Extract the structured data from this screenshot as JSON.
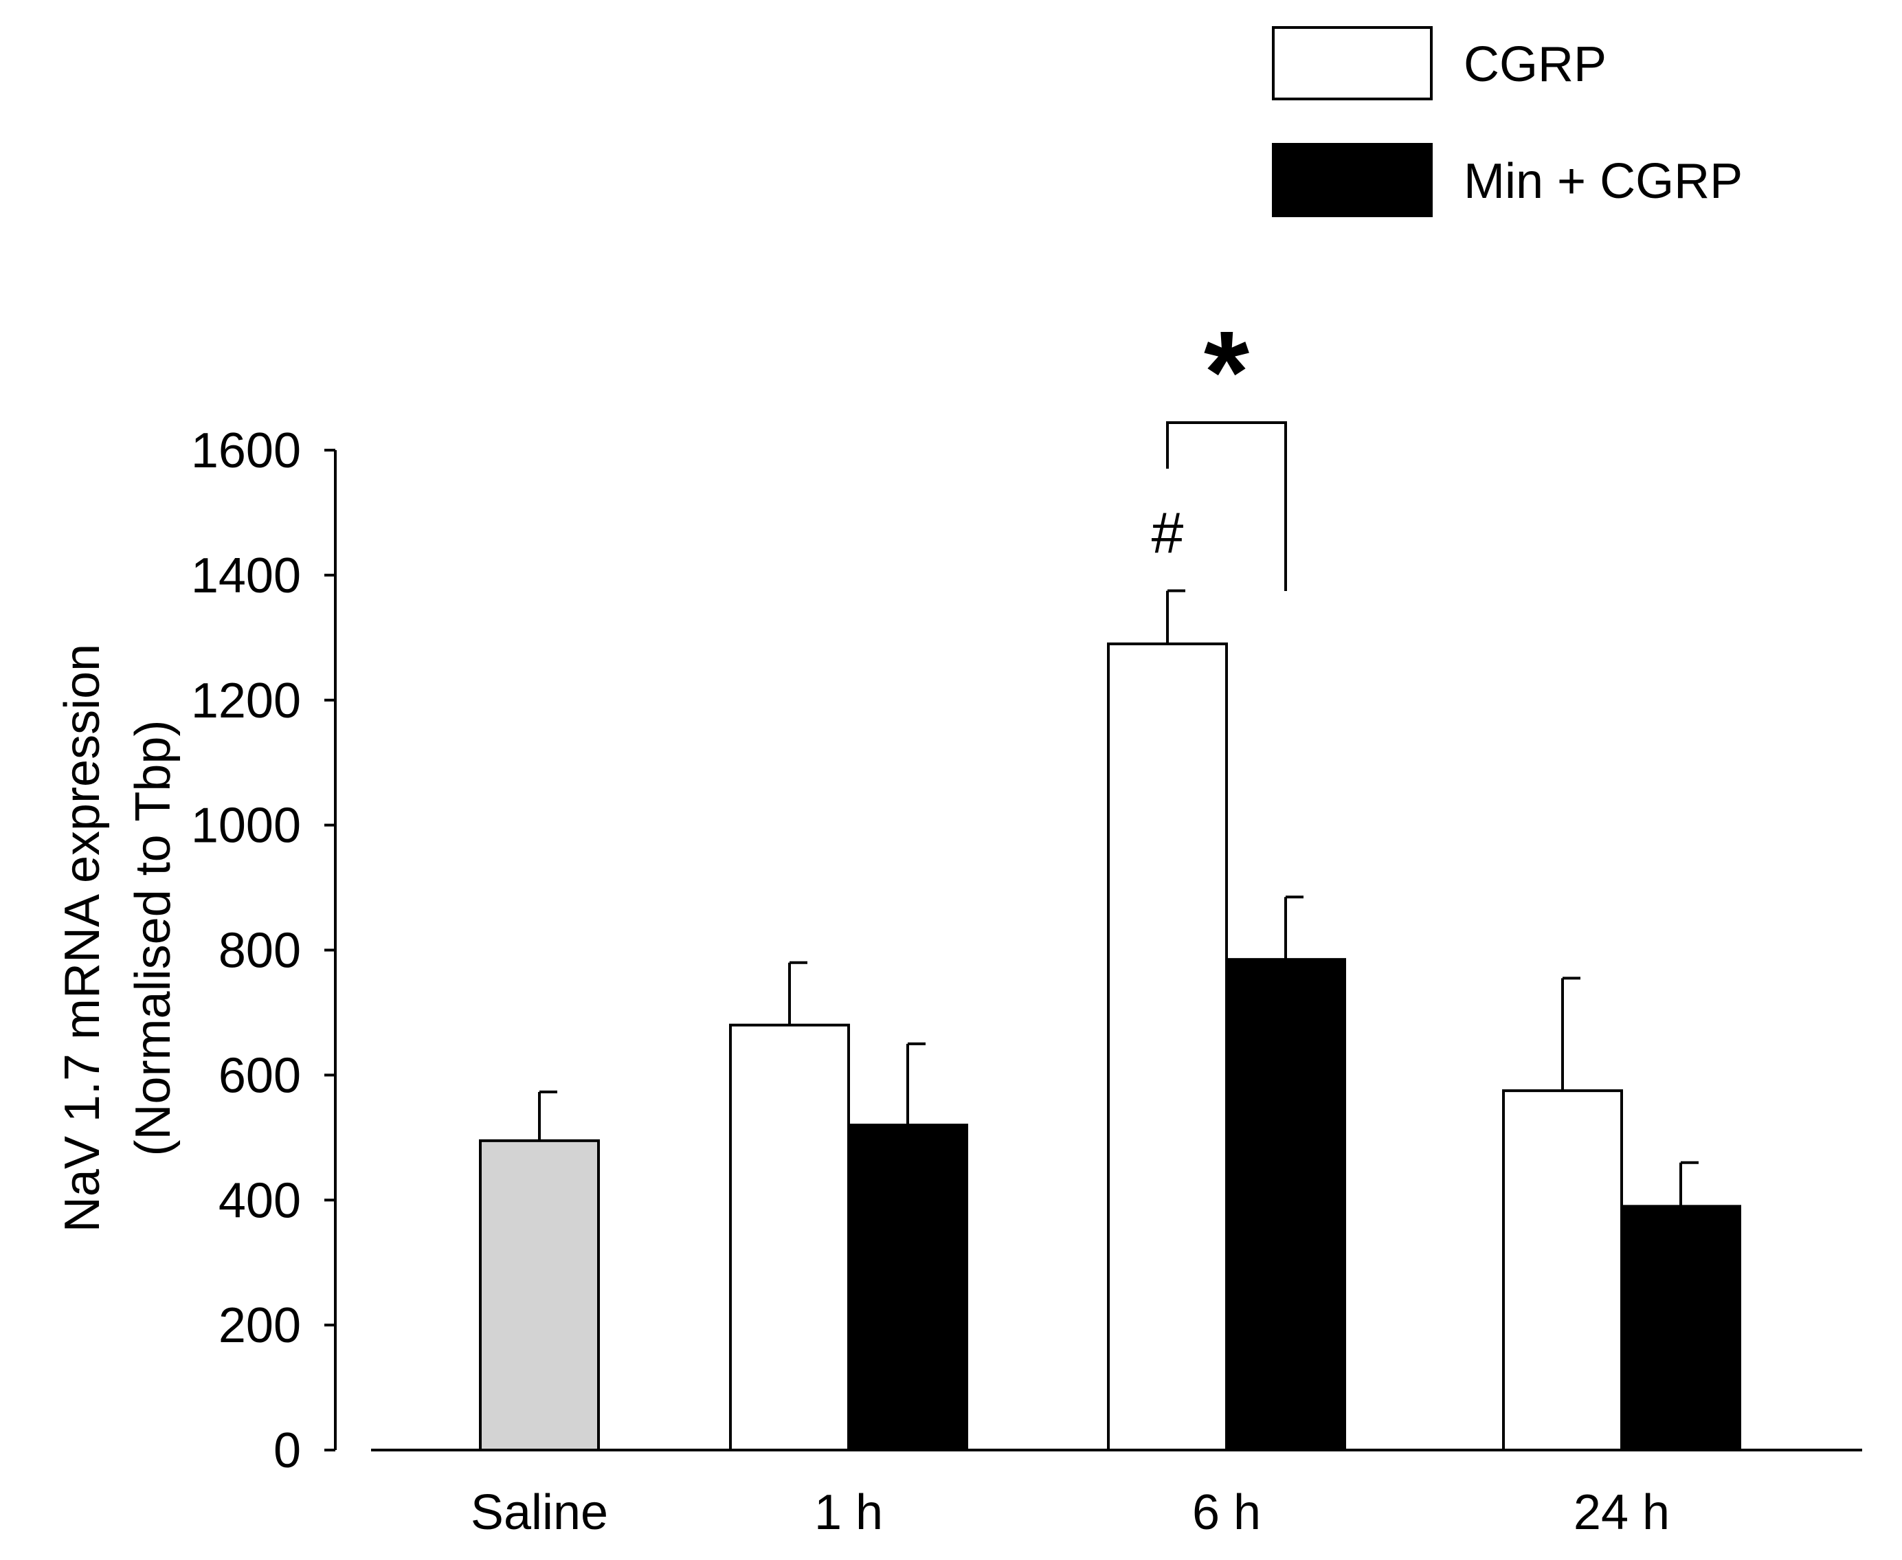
{
  "chart_data": {
    "type": "bar",
    "title": "",
    "xlabel": "",
    "ylabel": [
      "NaV 1.7 mRNA expression",
      "(Normalised to Tbp)"
    ],
    "ylim": [
      0,
      1600
    ],
    "yticks": [
      0,
      200,
      400,
      600,
      800,
      1000,
      1200,
      1400,
      1600
    ],
    "categories": [
      "Saline",
      "1 h",
      "6 h",
      "24 h"
    ],
    "legend": {
      "position": "top-right",
      "entries": [
        {
          "label": "CGRP",
          "color": "#ffffff"
        },
        {
          "label": "Min + CGRP",
          "color": "#000000"
        }
      ]
    },
    "series": [
      {
        "name": "Saline",
        "color": "#d3d3d3",
        "values": [
          495,
          null,
          null,
          null
        ],
        "errors": [
          78,
          null,
          null,
          null
        ]
      },
      {
        "name": "CGRP",
        "color": "#ffffff",
        "values": [
          null,
          680,
          1290,
          575
        ],
        "errors": [
          null,
          100,
          85,
          180
        ]
      },
      {
        "name": "Min + CGRP",
        "color": "#000000",
        "values": [
          null,
          520,
          785,
          390
        ],
        "errors": [
          null,
          130,
          100,
          70
        ]
      }
    ],
    "annotations": [
      {
        "text": "#",
        "category": "6 h",
        "series": "CGRP"
      },
      {
        "text": "*",
        "category": "6 h",
        "between": [
          "CGRP",
          "Min + CGRP"
        ]
      }
    ]
  }
}
